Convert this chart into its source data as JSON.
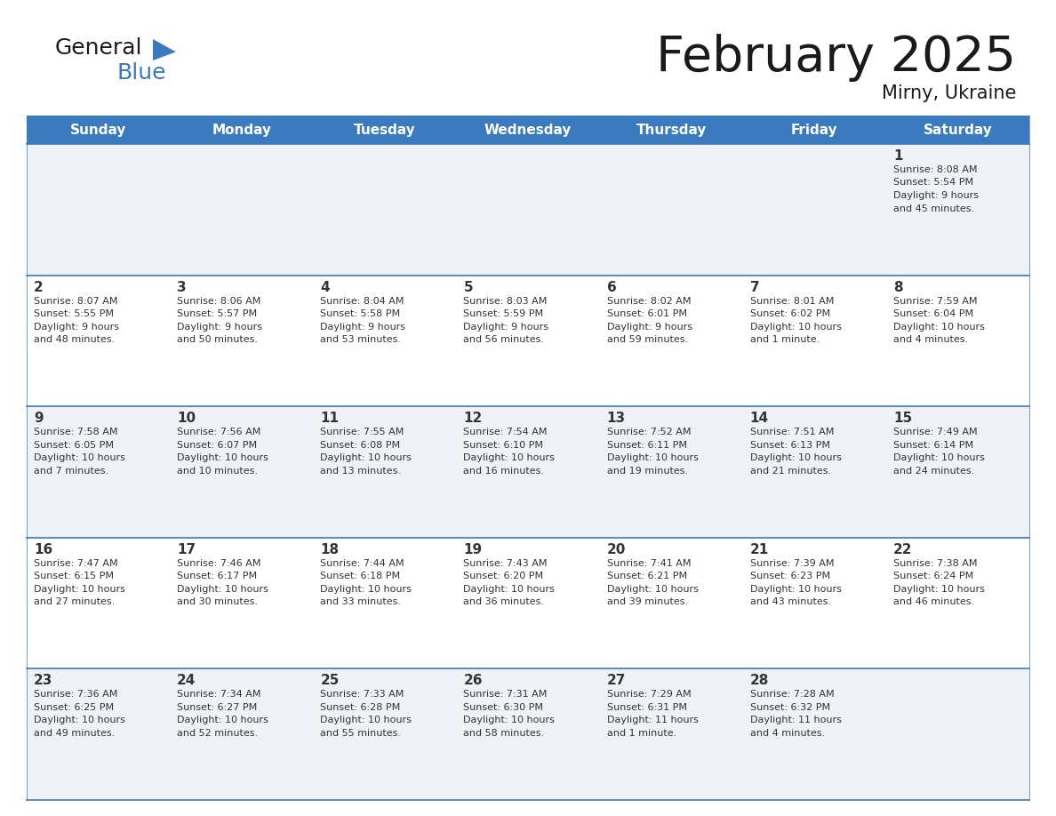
{
  "title": "February 2025",
  "subtitle": "Mirny, Ukraine",
  "header_color": "#3a7abf",
  "header_text_color": "#ffffff",
  "cell_bg_color": "#eef2f7",
  "divider_color": "#3a7abf",
  "text_color": "#333333",
  "days_of_week": [
    "Sunday",
    "Monday",
    "Tuesday",
    "Wednesday",
    "Thursday",
    "Friday",
    "Saturday"
  ],
  "weeks": [
    [
      null,
      null,
      null,
      null,
      null,
      null,
      1
    ],
    [
      2,
      3,
      4,
      5,
      6,
      7,
      8
    ],
    [
      9,
      10,
      11,
      12,
      13,
      14,
      15
    ],
    [
      16,
      17,
      18,
      19,
      20,
      21,
      22
    ],
    [
      23,
      24,
      25,
      26,
      27,
      28,
      null
    ]
  ],
  "day_data": {
    "1": {
      "sunrise": "8:08 AM",
      "sunset": "5:54 PM",
      "daylight_line1": "Daylight: 9 hours",
      "daylight_line2": "and 45 minutes."
    },
    "2": {
      "sunrise": "8:07 AM",
      "sunset": "5:55 PM",
      "daylight_line1": "Daylight: 9 hours",
      "daylight_line2": "and 48 minutes."
    },
    "3": {
      "sunrise": "8:06 AM",
      "sunset": "5:57 PM",
      "daylight_line1": "Daylight: 9 hours",
      "daylight_line2": "and 50 minutes."
    },
    "4": {
      "sunrise": "8:04 AM",
      "sunset": "5:58 PM",
      "daylight_line1": "Daylight: 9 hours",
      "daylight_line2": "and 53 minutes."
    },
    "5": {
      "sunrise": "8:03 AM",
      "sunset": "5:59 PM",
      "daylight_line1": "Daylight: 9 hours",
      "daylight_line2": "and 56 minutes."
    },
    "6": {
      "sunrise": "8:02 AM",
      "sunset": "6:01 PM",
      "daylight_line1": "Daylight: 9 hours",
      "daylight_line2": "and 59 minutes."
    },
    "7": {
      "sunrise": "8:01 AM",
      "sunset": "6:02 PM",
      "daylight_line1": "Daylight: 10 hours",
      "daylight_line2": "and 1 minute."
    },
    "8": {
      "sunrise": "7:59 AM",
      "sunset": "6:04 PM",
      "daylight_line1": "Daylight: 10 hours",
      "daylight_line2": "and 4 minutes."
    },
    "9": {
      "sunrise": "7:58 AM",
      "sunset": "6:05 PM",
      "daylight_line1": "Daylight: 10 hours",
      "daylight_line2": "and 7 minutes."
    },
    "10": {
      "sunrise": "7:56 AM",
      "sunset": "6:07 PM",
      "daylight_line1": "Daylight: 10 hours",
      "daylight_line2": "and 10 minutes."
    },
    "11": {
      "sunrise": "7:55 AM",
      "sunset": "6:08 PM",
      "daylight_line1": "Daylight: 10 hours",
      "daylight_line2": "and 13 minutes."
    },
    "12": {
      "sunrise": "7:54 AM",
      "sunset": "6:10 PM",
      "daylight_line1": "Daylight: 10 hours",
      "daylight_line2": "and 16 minutes."
    },
    "13": {
      "sunrise": "7:52 AM",
      "sunset": "6:11 PM",
      "daylight_line1": "Daylight: 10 hours",
      "daylight_line2": "and 19 minutes."
    },
    "14": {
      "sunrise": "7:51 AM",
      "sunset": "6:13 PM",
      "daylight_line1": "Daylight: 10 hours",
      "daylight_line2": "and 21 minutes."
    },
    "15": {
      "sunrise": "7:49 AM",
      "sunset": "6:14 PM",
      "daylight_line1": "Daylight: 10 hours",
      "daylight_line2": "and 24 minutes."
    },
    "16": {
      "sunrise": "7:47 AM",
      "sunset": "6:15 PM",
      "daylight_line1": "Daylight: 10 hours",
      "daylight_line2": "and 27 minutes."
    },
    "17": {
      "sunrise": "7:46 AM",
      "sunset": "6:17 PM",
      "daylight_line1": "Daylight: 10 hours",
      "daylight_line2": "and 30 minutes."
    },
    "18": {
      "sunrise": "7:44 AM",
      "sunset": "6:18 PM",
      "daylight_line1": "Daylight: 10 hours",
      "daylight_line2": "and 33 minutes."
    },
    "19": {
      "sunrise": "7:43 AM",
      "sunset": "6:20 PM",
      "daylight_line1": "Daylight: 10 hours",
      "daylight_line2": "and 36 minutes."
    },
    "20": {
      "sunrise": "7:41 AM",
      "sunset": "6:21 PM",
      "daylight_line1": "Daylight: 10 hours",
      "daylight_line2": "and 39 minutes."
    },
    "21": {
      "sunrise": "7:39 AM",
      "sunset": "6:23 PM",
      "daylight_line1": "Daylight: 10 hours",
      "daylight_line2": "and 43 minutes."
    },
    "22": {
      "sunrise": "7:38 AM",
      "sunset": "6:24 PM",
      "daylight_line1": "Daylight: 10 hours",
      "daylight_line2": "and 46 minutes."
    },
    "23": {
      "sunrise": "7:36 AM",
      "sunset": "6:25 PM",
      "daylight_line1": "Daylight: 10 hours",
      "daylight_line2": "and 49 minutes."
    },
    "24": {
      "sunrise": "7:34 AM",
      "sunset": "6:27 PM",
      "daylight_line1": "Daylight: 10 hours",
      "daylight_line2": "and 52 minutes."
    },
    "25": {
      "sunrise": "7:33 AM",
      "sunset": "6:28 PM",
      "daylight_line1": "Daylight: 10 hours",
      "daylight_line2": "and 55 minutes."
    },
    "26": {
      "sunrise": "7:31 AM",
      "sunset": "6:30 PM",
      "daylight_line1": "Daylight: 10 hours",
      "daylight_line2": "and 58 minutes."
    },
    "27": {
      "sunrise": "7:29 AM",
      "sunset": "6:31 PM",
      "daylight_line1": "Daylight: 11 hours",
      "daylight_line2": "and 1 minute."
    },
    "28": {
      "sunrise": "7:28 AM",
      "sunset": "6:32 PM",
      "daylight_line1": "Daylight: 11 hours",
      "daylight_line2": "and 4 minutes."
    }
  }
}
